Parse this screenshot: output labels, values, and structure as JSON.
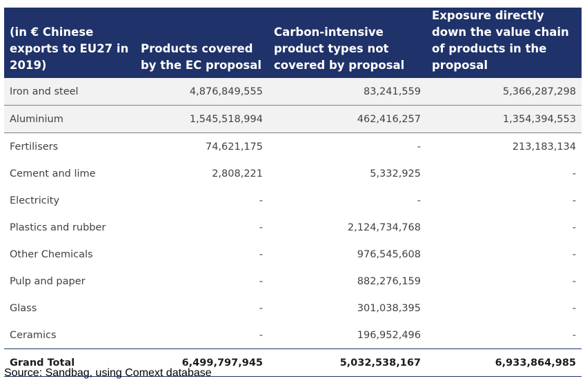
{
  "table": {
    "headers": [
      "(in € Chinese exports to EU27 in 2019)",
      "Products covered by the EC proposal",
      "Carbon-intensive product types not covered by proposal",
      "Exposure directly down the value chain of products in the proposal"
    ],
    "rows": [
      [
        "Iron and steel",
        "4,876,849,555",
        "83,241,559",
        "5,366,287,298"
      ],
      [
        "Aluminium",
        "1,545,518,994",
        "462,416,257",
        "1,354,394,553"
      ],
      [
        "Fertilisers",
        "74,621,175",
        "-",
        "213,183,134"
      ],
      [
        "Cement and lime",
        "2,808,221",
        "5,332,925",
        "-"
      ],
      [
        "Electricity",
        "-",
        "-",
        "-"
      ],
      [
        "Plastics and rubber",
        "-",
        "2,124,734,768",
        "-"
      ],
      [
        "Other Chemicals",
        "-",
        "976,545,608",
        "-"
      ],
      [
        "Pulp and paper",
        "-",
        "882,276,159",
        "-"
      ],
      [
        "Glass",
        "-",
        "301,038,395",
        "-"
      ],
      [
        "Ceramics",
        "-",
        "196,952,496",
        "-"
      ]
    ],
    "total": [
      "Grand Total",
      "6,499,797,945",
      "5,032,538,167",
      "6,933,864,985"
    ]
  },
  "source": "Source: Sandbag, using Comext database",
  "colors": {
    "header_bg": "#1f3269",
    "header_text": "#ffffff",
    "shaded_row": "#f2f2f2"
  }
}
